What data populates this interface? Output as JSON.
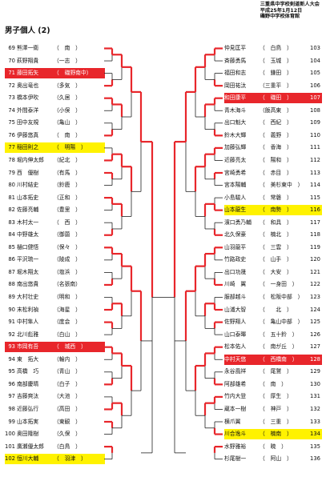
{
  "header": {
    "line1": "三重県中学校剣道新人大会",
    "line2": "平成25年1月12日",
    "line3": "磯野中学校体育館"
  },
  "title": "男子個人 (2)",
  "left_entries": [
    {
      "num": "69",
      "name": "熊澤一衛",
      "school": "（　南　）"
    },
    {
      "num": "70",
      "name": "萩野翔貴",
      "school": "（一志　）"
    },
    {
      "num": "71",
      "name": "藤田拓矢",
      "school": "（　磯野南中）",
      "hl": "red"
    },
    {
      "num": "72",
      "name": "奥出竜也",
      "school": "（多気　）"
    },
    {
      "num": "73",
      "name": "橋本伊吹",
      "school": "（久居　）"
    },
    {
      "num": "74",
      "name": "外間泰洋",
      "school": "（小俣　）"
    },
    {
      "num": "75",
      "name": "田中友規",
      "school": "（亀山　）"
    },
    {
      "num": "76",
      "name": "伊藤悠真",
      "school": "（　南　）"
    },
    {
      "num": "77",
      "name": "稲田則之",
      "school": "（　明陽　）",
      "hl": "yellow"
    },
    {
      "num": "78",
      "name": "堀内伸太郎",
      "school": "（紀北　）"
    },
    {
      "num": "79",
      "name": "西　優樹",
      "school": "（有馬　）"
    },
    {
      "num": "80",
      "name": "川村結史",
      "school": "（鈴鹿　）"
    },
    {
      "num": "81",
      "name": "山本拓史",
      "school": "（正和　）"
    },
    {
      "num": "82",
      "name": "佐藤亮輔",
      "school": "（豊里　）"
    },
    {
      "num": "83",
      "name": "木村太一",
      "school": "（　西　）"
    },
    {
      "num": "84",
      "name": "中野雄太",
      "school": "（御薗　）"
    },
    {
      "num": "85",
      "name": "樋口健悟",
      "school": "（保々　）"
    },
    {
      "num": "86",
      "name": "平沢琉一",
      "school": "（陵成　）"
    },
    {
      "num": "87",
      "name": "堀木翔太",
      "school": "（塩浜　）"
    },
    {
      "num": "88",
      "name": "南出悠貴",
      "school": "（名張南）"
    },
    {
      "num": "89",
      "name": "大村壮史",
      "school": "（明和　）"
    },
    {
      "num": "90",
      "name": "末松利禎",
      "school": "（海星　）"
    },
    {
      "num": "91",
      "name": "中村隼人",
      "school": "（度会　）"
    },
    {
      "num": "92",
      "name": "北川彪雅",
      "school": "（白山　）"
    },
    {
      "num": "93",
      "name": "市岡有吾",
      "school": "（　城西　）",
      "hl": "red"
    },
    {
      "num": "94",
      "name": "東　拓大",
      "school": "（輪内　）"
    },
    {
      "num": "95",
      "name": "高橋　巧",
      "school": "（青山　）"
    },
    {
      "num": "96",
      "name": "南部慶晴",
      "school": "（白子　）"
    },
    {
      "num": "97",
      "name": "吉藤爽汰",
      "school": "（大池　）"
    },
    {
      "num": "98",
      "name": "近藤弘行",
      "school": "（高田　）"
    },
    {
      "num": "99",
      "name": "山本拓実",
      "school": "（東観　）"
    },
    {
      "num": "100",
      "name": "奥田隆樹",
      "school": "（久保　）"
    },
    {
      "num": "101",
      "name": "廣瀬優太郎",
      "school": "（白鳥　）"
    },
    {
      "num": "102",
      "name": "恒川大輔",
      "school": "（　羽津　）",
      "hl": "yellow"
    }
  ],
  "right_entries": [
    {
      "num": "103",
      "name": "仲見匡平",
      "school": "（　白鳥　）"
    },
    {
      "num": "104",
      "name": "斉藤勇馬",
      "school": "（　玉城　）"
    },
    {
      "num": "105",
      "name": "福田和志",
      "school": "（　鎌田　）"
    },
    {
      "num": "106",
      "name": "岡田祐汰",
      "school": "（三重平　）"
    },
    {
      "num": "107",
      "name": "和田康平",
      "school": "（　磯田　）",
      "hl": "red"
    },
    {
      "num": "108",
      "name": "青木海斗",
      "school": "（飯高東　）"
    },
    {
      "num": "109",
      "name": "出口魁大",
      "school": "（　西紀　）"
    },
    {
      "num": "110",
      "name": "鈴木大輝",
      "school": "（　義野　）"
    },
    {
      "num": "111",
      "name": "加藤弘輝",
      "school": "（　香海　）"
    },
    {
      "num": "112",
      "name": "近藤亮太",
      "school": "（　陽和　）"
    },
    {
      "num": "113",
      "name": "宮崎勇希",
      "school": "（　赤目　）"
    },
    {
      "num": "114",
      "name": "宮本陽輔",
      "school": "（　美杉東中　）"
    },
    {
      "num": "115",
      "name": "小島駿人",
      "school": "（　常磐　）"
    },
    {
      "num": "116",
      "name": "山本龍生",
      "school": "（　南勢　）",
      "hl": "yellow"
    },
    {
      "num": "117",
      "name": "濱口勇乃輔",
      "school": "（　和具　）"
    },
    {
      "num": "118",
      "name": "北久保豪",
      "school": "（　楠北　）"
    },
    {
      "num": "119",
      "name": "山羽龍平",
      "school": "（　三雲　）"
    },
    {
      "num": "120",
      "name": "竹路政史",
      "school": "（　山手　）"
    },
    {
      "num": "121",
      "name": "出口功晟",
      "school": "（　大安　）"
    },
    {
      "num": "122",
      "name": "川崎　翼",
      "school": "（　一身田　）"
    },
    {
      "num": "123",
      "name": "服部越斗",
      "school": "（　松阪中部　）"
    },
    {
      "num": "124",
      "name": "山浦大智",
      "school": "（　　北　）"
    },
    {
      "num": "125",
      "name": "佐野翔人",
      "school": "（　亀山中部　）"
    },
    {
      "num": "126",
      "name": "山口泰暉",
      "school": "（　五十鈴　）"
    },
    {
      "num": "127",
      "name": "松本佑人",
      "school": "（　南が丘　）"
    },
    {
      "num": "128",
      "name": "中村天悠",
      "school": "（　西橋南　）",
      "hl": "red"
    },
    {
      "num": "129",
      "name": "永谷風祥",
      "school": "（　尾鷲　）"
    },
    {
      "num": "130",
      "name": "阿部雄希",
      "school": "（　南　）"
    },
    {
      "num": "131",
      "name": "竹内大登",
      "school": "（　厚生　）"
    },
    {
      "num": "132",
      "name": "蔵本一樹",
      "school": "（　神戸　）"
    },
    {
      "num": "133",
      "name": "横爪翼",
      "school": "（　三重　）"
    },
    {
      "num": "134",
      "name": "川合逸斗",
      "school": "（　楠南　）",
      "hl": "yellow"
    },
    {
      "num": "135",
      "name": "水野雅裕",
      "school": "（　暁　）"
    },
    {
      "num": "136",
      "name": "杉尾樹一",
      "school": "（　阿山　）"
    }
  ],
  "colors": {
    "win_line": "#e8262b",
    "line": "#222222",
    "red_hl": "#e8262b",
    "yellow_hl": "#fff200"
  }
}
